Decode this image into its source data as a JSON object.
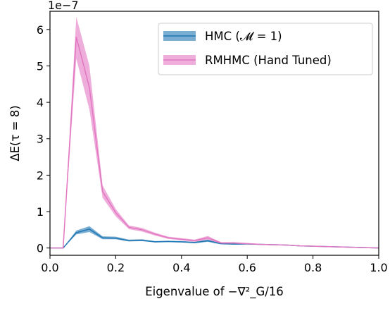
{
  "chart_data": {
    "type": "area",
    "xlabel": "Eigenvalue of −∇²_G/16",
    "ylabel": "ΔE(τ = 8)",
    "y_offset_text": "1e−7",
    "xlim": [
      0.0,
      1.0
    ],
    "ylim": [
      -0.2,
      6.5
    ],
    "x_ticks": [
      0.0,
      0.2,
      0.4,
      0.6,
      0.8,
      1.0
    ],
    "x_tick_labels": [
      "0.0",
      "0.2",
      "0.4",
      "0.6",
      "0.8",
      "1.0"
    ],
    "y_ticks": [
      0,
      1,
      2,
      3,
      4,
      5,
      6
    ],
    "y_tick_labels": [
      "0",
      "1",
      "2",
      "3",
      "4",
      "5",
      "6"
    ],
    "y_scale_factor": 1e-07,
    "legend_position": "top-right",
    "series": [
      {
        "name": "HMC (𝓜 = 1)",
        "color": "#1f77b4",
        "x": [
          0.0,
          0.04,
          0.08,
          0.12,
          0.16,
          0.2,
          0.24,
          0.28,
          0.32,
          0.36,
          0.4,
          0.44,
          0.48,
          0.52,
          0.56,
          0.6,
          0.64,
          0.68,
          0.72,
          0.76,
          0.8,
          0.84,
          0.88,
          0.92,
          0.96,
          1.0
        ],
        "mean": [
          0.0,
          0.0,
          0.42,
          0.52,
          0.28,
          0.27,
          0.2,
          0.21,
          0.17,
          0.18,
          0.17,
          0.15,
          0.2,
          0.12,
          0.11,
          0.11,
          0.1,
          0.09,
          0.08,
          0.06,
          0.05,
          0.04,
          0.03,
          0.02,
          0.01,
          0.0
        ],
        "lower": [
          0.0,
          0.0,
          0.37,
          0.44,
          0.24,
          0.24,
          0.18,
          0.19,
          0.15,
          0.16,
          0.15,
          0.13,
          0.17,
          0.1,
          0.09,
          0.1,
          0.09,
          0.08,
          0.07,
          0.05,
          0.04,
          0.03,
          0.02,
          0.01,
          0.0,
          0.0
        ],
        "upper": [
          0.0,
          0.0,
          0.48,
          0.6,
          0.32,
          0.31,
          0.23,
          0.24,
          0.19,
          0.2,
          0.19,
          0.17,
          0.23,
          0.14,
          0.13,
          0.13,
          0.11,
          0.1,
          0.09,
          0.07,
          0.06,
          0.05,
          0.04,
          0.03,
          0.02,
          0.0
        ]
      },
      {
        "name": "RMHMC (Hand Tuned)",
        "color": "#e377c2",
        "x": [
          0.0,
          0.04,
          0.08,
          0.12,
          0.16,
          0.2,
          0.24,
          0.28,
          0.32,
          0.36,
          0.4,
          0.44,
          0.48,
          0.52,
          0.56,
          0.6,
          0.64,
          0.68,
          0.72,
          0.76,
          0.8,
          0.84,
          0.88,
          0.92,
          0.96,
          1.0
        ],
        "mean": [
          0.0,
          0.0,
          5.8,
          4.4,
          1.55,
          0.97,
          0.57,
          0.5,
          0.38,
          0.28,
          0.24,
          0.2,
          0.28,
          0.14,
          0.14,
          0.12,
          0.1,
          0.09,
          0.08,
          0.06,
          0.05,
          0.04,
          0.03,
          0.02,
          0.01,
          0.0
        ],
        "lower": [
          0.0,
          0.0,
          5.2,
          3.8,
          1.38,
          0.87,
          0.52,
          0.45,
          0.34,
          0.25,
          0.21,
          0.17,
          0.23,
          0.12,
          0.12,
          0.1,
          0.09,
          0.08,
          0.07,
          0.05,
          0.04,
          0.03,
          0.02,
          0.01,
          0.0,
          0.0
        ],
        "upper": [
          0.0,
          0.0,
          6.35,
          5.0,
          1.72,
          1.07,
          0.62,
          0.55,
          0.42,
          0.31,
          0.27,
          0.23,
          0.33,
          0.16,
          0.16,
          0.14,
          0.11,
          0.1,
          0.09,
          0.07,
          0.06,
          0.05,
          0.04,
          0.03,
          0.02,
          0.0
        ]
      }
    ]
  }
}
